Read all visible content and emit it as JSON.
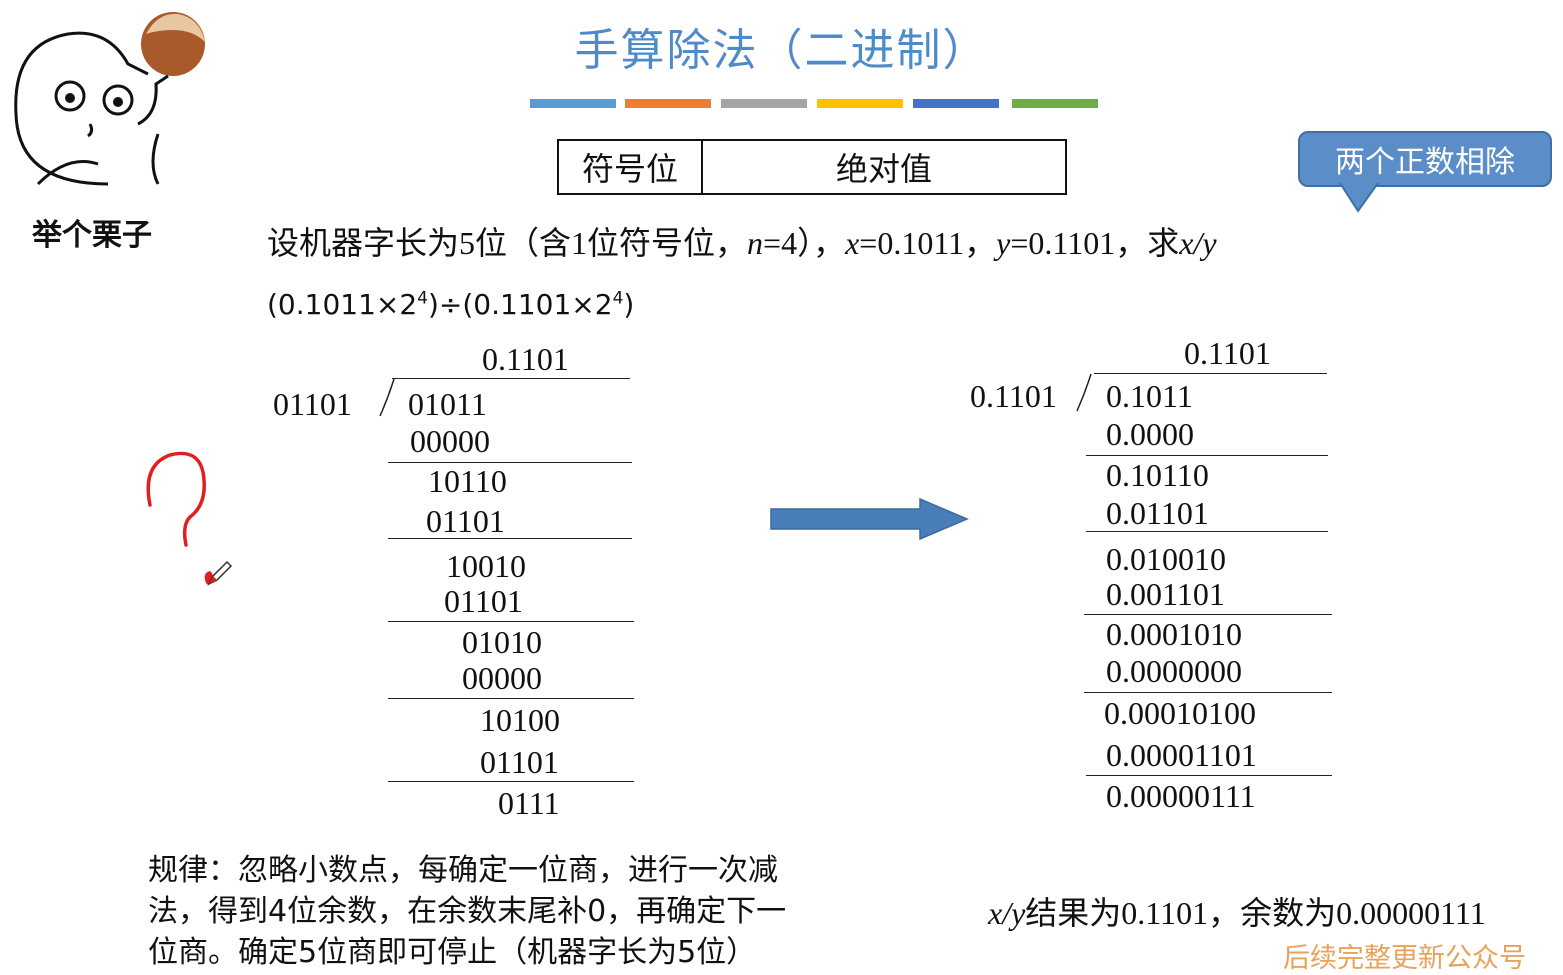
{
  "title": "手算除法（二进制）",
  "colors": {
    "title": "#4f8bc9",
    "bars": [
      "#5b9bd5",
      "#ed7d31",
      "#a5a5a5",
      "#ffc000",
      "#4472c4",
      "#70ad47"
    ],
    "callout": "#5b8dc8",
    "arrow": "#4a7ebb",
    "watermark": "#e9a25a"
  },
  "header_table": {
    "sign_col": "符号位",
    "abs_col": "绝对值"
  },
  "callout": "两个正数相除",
  "mascot": {
    "caption": "举个栗子"
  },
  "question": {
    "p1": "设机器字长为5位（含1位符号位，",
    "n_var": "n",
    "p2": "=4），",
    "x_var": "x",
    "p3": "=0.1011，",
    "y_var": "y",
    "p4": "=0.1101，求",
    "xy": "x/y"
  },
  "formula": {
    "left": "(0.1011×2",
    "mid": ")÷(0.1101×2",
    "end": ")",
    "exp": "4"
  },
  "left_division": {
    "quotient": "0.1101",
    "divisor": "01101",
    "steps": [
      "01011",
      "00000",
      "10110",
      "01101",
      "10010",
      "01101",
      "01010",
      "00000",
      "10100",
      "01101",
      "0111"
    ]
  },
  "right_division": {
    "quotient": "0.1101",
    "divisor": "0.1101",
    "steps": [
      "0.1011",
      "0.0000",
      "0.10110",
      "0.01101",
      "0.010010",
      "0.001101",
      "0.0001010",
      "0.0000000",
      "0.00010100",
      "0.00001101",
      "0.00000111"
    ]
  },
  "rule": {
    "line1": "规律：忽略小数点，每确定一位商，进行一次减",
    "line2": "法，得到4位余数，在余数末尾补0，再确定下一",
    "line3": "位商。确定5位商即可停止（机器字长为5位）"
  },
  "result": {
    "xy": "x/y",
    "text": "结果为0.1101，余数为0.00000111"
  },
  "watermark": "后续完整更新公众号"
}
